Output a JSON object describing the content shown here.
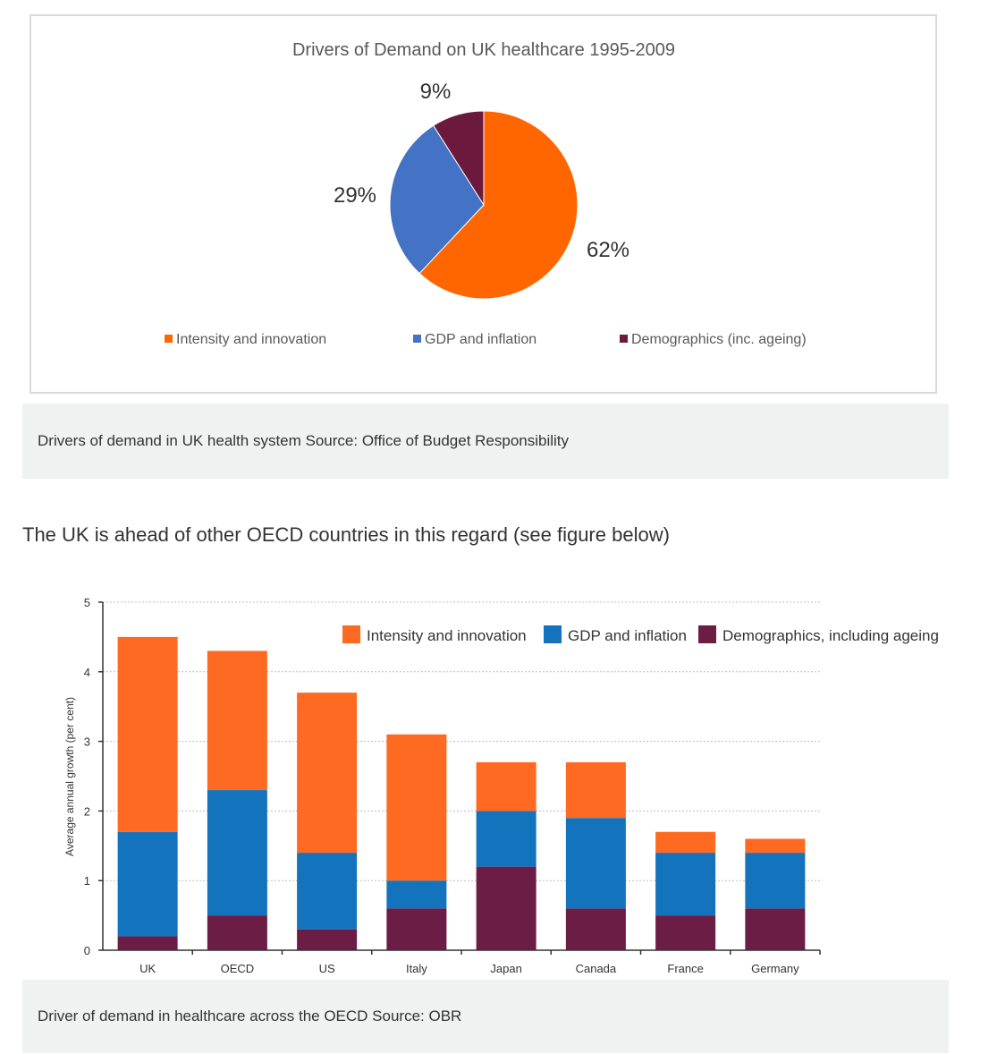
{
  "colors": {
    "pie_intensity": "#ff6600",
    "pie_gdp": "#4472c4",
    "pie_demographics": "#6b1a3d",
    "bar_intensity": "#fe6a22",
    "bar_gdp": "#1473bd",
    "bar_demographics": "#6b1d45",
    "caption_bg": "#f0f1f1"
  },
  "captions": {
    "pie": "Drivers of demand in UK health system Source: Office of Budget Responsibility",
    "bar": "Driver of demand in healthcare across the OECD Source: OBR"
  },
  "paragraph": "The UK is ahead of other OECD countries in this regard (see figure below)",
  "chart_data": [
    {
      "type": "pie",
      "title": "Drivers of Demand on UK healthcare 1995-2009",
      "slices": [
        {
          "label": "Intensity and innovation",
          "value": 62,
          "display": "62%"
        },
        {
          "label": "GDP and inflation",
          "value": 29,
          "display": "29%"
        },
        {
          "label": "Demographics (inc. ageing)",
          "value": 9,
          "display": "9%"
        }
      ],
      "legend_position": "bottom"
    },
    {
      "type": "bar",
      "stacked": true,
      "title": "",
      "xlabel": "",
      "ylabel": "Average annual growth (per cent)",
      "ylim": [
        0,
        5
      ],
      "yticks": [
        "0",
        "1",
        "2",
        "3",
        "4",
        "5"
      ],
      "categories": [
        "UK",
        "OECD",
        "US",
        "Italy",
        "Japan",
        "Canada",
        "France",
        "Germany"
      ],
      "series": [
        {
          "name": "Demographics, including ageing",
          "values": [
            0.2,
            0.5,
            0.3,
            0.6,
            1.2,
            0.6,
            0.5,
            0.6
          ]
        },
        {
          "name": "GDP and inflation",
          "values": [
            1.5,
            1.8,
            1.1,
            0.4,
            0.8,
            1.3,
            0.9,
            0.8
          ]
        },
        {
          "name": "Intensity and innovation",
          "values": [
            2.8,
            2.0,
            2.3,
            2.1,
            0.7,
            0.8,
            0.3,
            0.2
          ]
        }
      ],
      "legend_order": [
        "Intensity and innovation",
        "GDP and inflation",
        "Demographics, including ageing"
      ],
      "legend_position": "top-right",
      "grid": "dotted horizontal"
    }
  ]
}
